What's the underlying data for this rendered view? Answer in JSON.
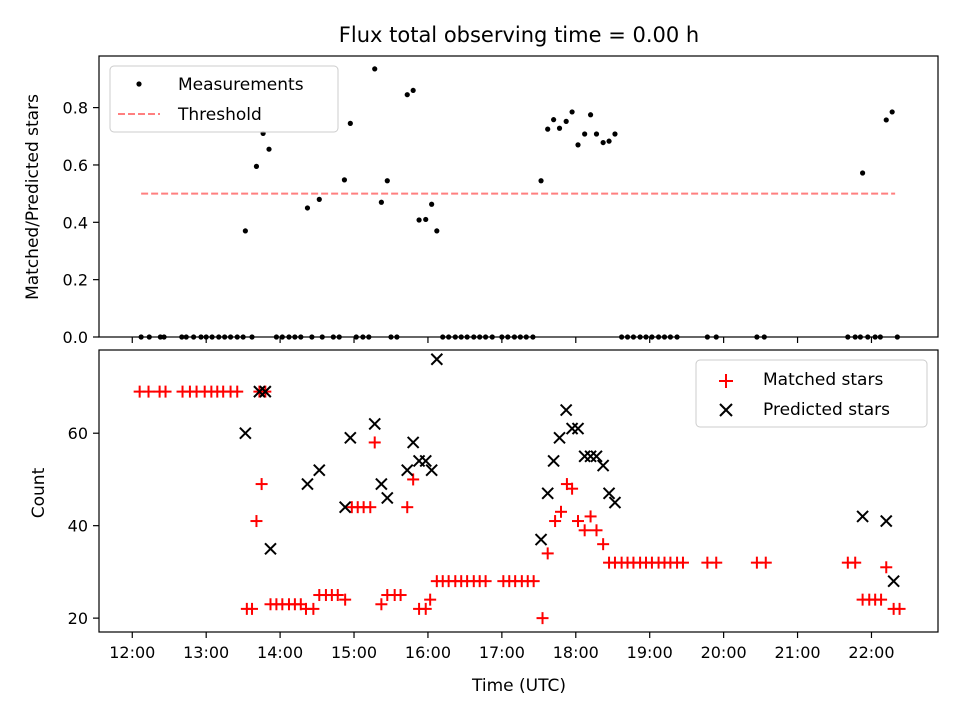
{
  "title": "Flux total observing time = 0.00 h",
  "colors": {
    "measurements": "#000000",
    "threshold": "#ff7f7f",
    "matched": "#ff0000",
    "predicted": "#000000",
    "frame": "#000000",
    "background": "#ffffff"
  },
  "chart_data": [
    {
      "type": "scatter",
      "panel": "top",
      "ylabel": "Matched/Predicted stars",
      "xlabel": "",
      "x_unit": "hours (UTC)",
      "xlim": [
        11.55,
        22.9
      ],
      "ylim": [
        0,
        0.98
      ],
      "x_ticks": [
        12,
        13,
        14,
        15,
        16,
        17,
        18,
        19,
        20,
        21,
        22
      ],
      "x_tick_labels_visible": false,
      "y_ticks": [
        0.0,
        0.2,
        0.4,
        0.6,
        0.8
      ],
      "y_tick_labels": [
        "0.0",
        "0.2",
        "0.4",
        "0.6",
        "0.8"
      ],
      "grid": false,
      "legend": {
        "position": "top-left",
        "entries": [
          "Measurements",
          "Threshold"
        ]
      },
      "series": [
        {
          "name": "Measurements",
          "marker": "dot",
          "color": "#000000",
          "points": [
            [
              12.12,
              0
            ],
            [
              12.23,
              0
            ],
            [
              12.38,
              0
            ],
            [
              12.43,
              0
            ],
            [
              12.67,
              0
            ],
            [
              12.73,
              0
            ],
            [
              12.83,
              0
            ],
            [
              12.93,
              0
            ],
            [
              13.0,
              0
            ],
            [
              13.08,
              0
            ],
            [
              13.17,
              0
            ],
            [
              13.25,
              0
            ],
            [
              13.33,
              0
            ],
            [
              13.42,
              0
            ],
            [
              13.5,
              0
            ],
            [
              13.62,
              0
            ],
            [
              13.53,
              0.37
            ],
            [
              13.68,
              0.595
            ],
            [
              13.77,
              0.71
            ],
            [
              13.85,
              0.655
            ],
            [
              13.95,
              0
            ],
            [
              14.03,
              0
            ],
            [
              14.12,
              0
            ],
            [
              14.2,
              0
            ],
            [
              14.28,
              0
            ],
            [
              14.43,
              0
            ],
            [
              14.57,
              0
            ],
            [
              14.72,
              0
            ],
            [
              14.8,
              0
            ],
            [
              14.37,
              0.45
            ],
            [
              14.53,
              0.48
            ],
            [
              14.87,
              0.548
            ],
            [
              14.95,
              0.745
            ],
            [
              15.03,
              0
            ],
            [
              15.12,
              0
            ],
            [
              15.2,
              0
            ],
            [
              15.5,
              0
            ],
            [
              15.58,
              0
            ],
            [
              15.28,
              0.935
            ],
            [
              15.37,
              0.47
            ],
            [
              15.45,
              0.545
            ],
            [
              15.72,
              0.845
            ],
            [
              15.8,
              0.86
            ],
            [
              15.88,
              0.408
            ],
            [
              15.97,
              0.41
            ],
            [
              16.05,
              0.463
            ],
            [
              16.12,
              0.37
            ],
            [
              16.2,
              0
            ],
            [
              16.28,
              0
            ],
            [
              16.37,
              0
            ],
            [
              16.45,
              0
            ],
            [
              16.53,
              0
            ],
            [
              16.62,
              0
            ],
            [
              16.7,
              0
            ],
            [
              16.78,
              0
            ],
            [
              16.87,
              0
            ],
            [
              17.0,
              0
            ],
            [
              17.08,
              0
            ],
            [
              17.17,
              0
            ],
            [
              17.25,
              0
            ],
            [
              17.33,
              0
            ],
            [
              17.42,
              0
            ],
            [
              17.53,
              0.545
            ],
            [
              17.62,
              0.725
            ],
            [
              17.7,
              0.758
            ],
            [
              17.78,
              0.728
            ],
            [
              17.87,
              0.752
            ],
            [
              17.95,
              0.785
            ],
            [
              18.03,
              0.67
            ],
            [
              18.12,
              0.708
            ],
            [
              18.2,
              0.775
            ],
            [
              18.28,
              0.708
            ],
            [
              18.37,
              0.678
            ],
            [
              18.45,
              0.683
            ],
            [
              18.53,
              0.708
            ],
            [
              18.62,
              0
            ],
            [
              18.7,
              0
            ],
            [
              18.78,
              0
            ],
            [
              18.87,
              0
            ],
            [
              18.95,
              0
            ],
            [
              19.03,
              0
            ],
            [
              19.12,
              0
            ],
            [
              19.2,
              0
            ],
            [
              19.28,
              0
            ],
            [
              19.37,
              0
            ],
            [
              19.78,
              0
            ],
            [
              19.9,
              0
            ],
            [
              20.45,
              0
            ],
            [
              20.55,
              0
            ],
            [
              21.68,
              0
            ],
            [
              21.78,
              0
            ],
            [
              21.85,
              0
            ],
            [
              21.95,
              0
            ],
            [
              22.05,
              0
            ],
            [
              22.12,
              0
            ],
            [
              22.35,
              0
            ],
            [
              21.88,
              0.572
            ],
            [
              22.2,
              0.757
            ],
            [
              22.28,
              0.785
            ]
          ]
        },
        {
          "name": "Threshold",
          "style": "dashed",
          "color": "#ff7f7f",
          "points": [
            [
              12.12,
              0.5
            ],
            [
              22.32,
              0.5
            ]
          ]
        }
      ]
    },
    {
      "type": "scatter",
      "panel": "bottom",
      "ylabel": "Count",
      "xlabel": "Time (UTC)",
      "x_unit": "hours (UTC)",
      "xlim": [
        11.55,
        22.9
      ],
      "ylim": [
        17,
        78
      ],
      "x_ticks": [
        12,
        13,
        14,
        15,
        16,
        17,
        18,
        19,
        20,
        21,
        22
      ],
      "x_tick_labels": [
        "12:00",
        "13:00",
        "14:00",
        "15:00",
        "16:00",
        "17:00",
        "18:00",
        "19:00",
        "20:00",
        "21:00",
        "22:00"
      ],
      "y_ticks": [
        20,
        40,
        60
      ],
      "y_tick_labels": [
        "20",
        "40",
        "60"
      ],
      "grid": false,
      "legend": {
        "position": "top-right",
        "entries": [
          "Matched stars",
          "Predicted stars"
        ]
      },
      "series": [
        {
          "name": "Matched stars",
          "marker": "plus",
          "color": "#ff0000",
          "points": [
            [
              12.1,
              69
            ],
            [
              12.22,
              69
            ],
            [
              12.37,
              69
            ],
            [
              12.45,
              69
            ],
            [
              12.68,
              69
            ],
            [
              12.78,
              69
            ],
            [
              12.87,
              69
            ],
            [
              12.98,
              69
            ],
            [
              13.07,
              69
            ],
            [
              13.15,
              69
            ],
            [
              13.23,
              69
            ],
            [
              13.33,
              69
            ],
            [
              13.42,
              69
            ],
            [
              13.55,
              22
            ],
            [
              13.62,
              22
            ],
            [
              13.68,
              41
            ],
            [
              13.75,
              49
            ],
            [
              13.72,
              69
            ],
            [
              13.8,
              69
            ],
            [
              13.87,
              23
            ],
            [
              13.95,
              23
            ],
            [
              14.03,
              23
            ],
            [
              14.12,
              23
            ],
            [
              14.2,
              23
            ],
            [
              14.28,
              23
            ],
            [
              14.35,
              22
            ],
            [
              14.45,
              22
            ],
            [
              14.53,
              25
            ],
            [
              14.62,
              25
            ],
            [
              14.7,
              25
            ],
            [
              14.78,
              25
            ],
            [
              14.88,
              24
            ],
            [
              14.97,
              44
            ],
            [
              15.05,
              44
            ],
            [
              15.13,
              44
            ],
            [
              15.22,
              44
            ],
            [
              15.28,
              58
            ],
            [
              15.37,
              23
            ],
            [
              15.45,
              25
            ],
            [
              15.55,
              25
            ],
            [
              15.63,
              25
            ],
            [
              15.72,
              44
            ],
            [
              15.8,
              50
            ],
            [
              15.88,
              22
            ],
            [
              15.97,
              22
            ],
            [
              16.03,
              24
            ],
            [
              16.12,
              28
            ],
            [
              16.2,
              28
            ],
            [
              16.28,
              28
            ],
            [
              16.37,
              28
            ],
            [
              16.45,
              28
            ],
            [
              16.53,
              28
            ],
            [
              16.62,
              28
            ],
            [
              16.7,
              28
            ],
            [
              16.78,
              28
            ],
            [
              17.02,
              28
            ],
            [
              17.1,
              28
            ],
            [
              17.18,
              28
            ],
            [
              17.27,
              28
            ],
            [
              17.35,
              28
            ],
            [
              17.43,
              28
            ],
            [
              17.55,
              20
            ],
            [
              17.62,
              34
            ],
            [
              17.72,
              41
            ],
            [
              17.8,
              43
            ],
            [
              17.88,
              49
            ],
            [
              17.95,
              48
            ],
            [
              18.03,
              41
            ],
            [
              18.12,
              39
            ],
            [
              18.2,
              42
            ],
            [
              18.28,
              39
            ],
            [
              18.37,
              36
            ],
            [
              18.45,
              32
            ],
            [
              18.53,
              32
            ],
            [
              18.62,
              32
            ],
            [
              18.7,
              32
            ],
            [
              18.78,
              32
            ],
            [
              18.87,
              32
            ],
            [
              18.95,
              32
            ],
            [
              19.03,
              32
            ],
            [
              19.12,
              32
            ],
            [
              19.2,
              32
            ],
            [
              19.28,
              32
            ],
            [
              19.37,
              32
            ],
            [
              19.45,
              32
            ],
            [
              19.78,
              32
            ],
            [
              19.9,
              32
            ],
            [
              20.45,
              32
            ],
            [
              20.57,
              32
            ],
            [
              21.68,
              32
            ],
            [
              21.78,
              32
            ],
            [
              21.88,
              24
            ],
            [
              21.97,
              24
            ],
            [
              22.05,
              24
            ],
            [
              22.13,
              24
            ],
            [
              22.2,
              31
            ],
            [
              22.3,
              22
            ],
            [
              22.38,
              22
            ]
          ]
        },
        {
          "name": "Predicted stars",
          "marker": "x",
          "color": "#000000",
          "points": [
            [
              13.53,
              60
            ],
            [
              13.72,
              69
            ],
            [
              13.8,
              69
            ],
            [
              13.87,
              35
            ],
            [
              14.37,
              49
            ],
            [
              14.53,
              52
            ],
            [
              14.88,
              44
            ],
            [
              14.95,
              59
            ],
            [
              15.28,
              62
            ],
            [
              15.37,
              49
            ],
            [
              15.45,
              46
            ],
            [
              15.72,
              52
            ],
            [
              15.8,
              58
            ],
            [
              15.88,
              54
            ],
            [
              15.97,
              54
            ],
            [
              16.05,
              52
            ],
            [
              16.12,
              76
            ],
            [
              17.53,
              37
            ],
            [
              17.62,
              47
            ],
            [
              17.7,
              54
            ],
            [
              17.78,
              59
            ],
            [
              17.87,
              65
            ],
            [
              17.95,
              61
            ],
            [
              18.03,
              61
            ],
            [
              18.12,
              55
            ],
            [
              18.2,
              55
            ],
            [
              18.28,
              55
            ],
            [
              18.37,
              53
            ],
            [
              18.45,
              47
            ],
            [
              18.53,
              45
            ],
            [
              21.88,
              42
            ],
            [
              22.2,
              41
            ],
            [
              22.3,
              28
            ]
          ]
        }
      ]
    }
  ]
}
